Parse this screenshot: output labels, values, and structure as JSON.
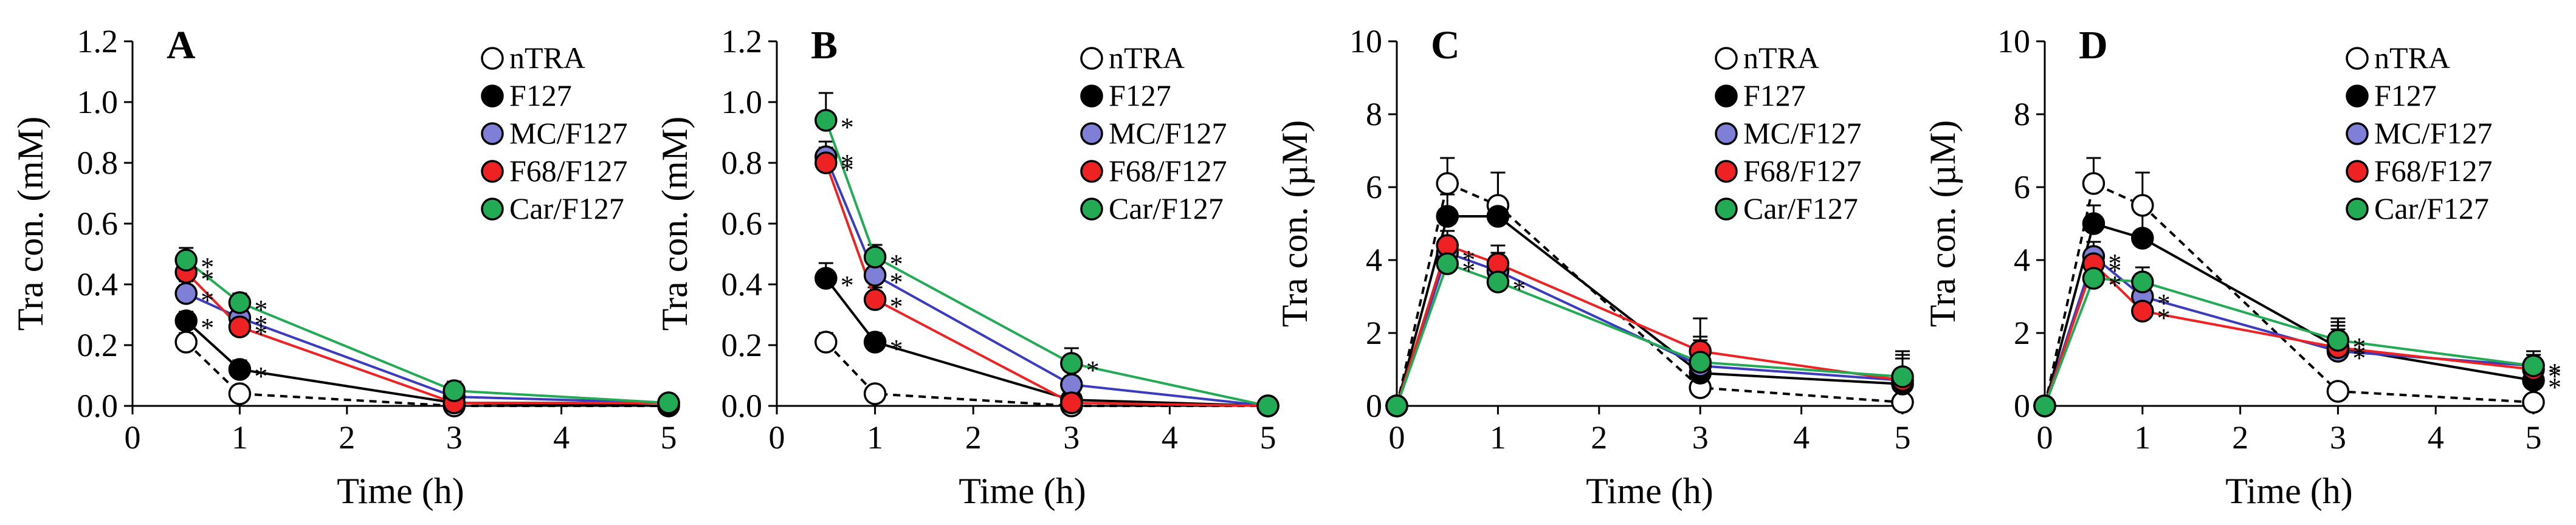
{
  "figure": {
    "series_styles": {
      "nTRA": {
        "fill": "#ffffff",
        "stroke": "#000000",
        "dash": true
      },
      "F127": {
        "fill": "#000000",
        "stroke": "#000000",
        "dash": false
      },
      "MC/F127": {
        "fill": "#7f7fd8",
        "stroke": "#3b3bbf",
        "dash": false
      },
      "F68/F127": {
        "fill": "#ee2222",
        "stroke": "#ee2222",
        "dash": false
      },
      "Car/F127": {
        "fill": "#22aa55",
        "stroke": "#22aa55",
        "dash": false
      }
    }
  },
  "chart_data": [
    {
      "type": "line",
      "panel": "A",
      "xlabel": "Time (h)",
      "ylabel": "Tra con. (mM)",
      "xlim": [
        0,
        5
      ],
      "ylim": [
        0,
        1.2
      ],
      "xticks": [
        "0",
        "1",
        "2",
        "3",
        "4",
        "5"
      ],
      "yticks": [
        "0.0",
        "0.2",
        "0.4",
        "0.6",
        "0.8",
        "1.0",
        "1.2"
      ],
      "x": [
        0.5,
        1,
        3,
        5
      ],
      "legend": [
        "nTRA",
        "F127",
        "MC/F127",
        "F68/F127",
        "Car/F127"
      ],
      "series": [
        {
          "name": "nTRA",
          "values": [
            0.21,
            0.04,
            0.0,
            0.0
          ],
          "err": [
            0.03,
            0.02,
            0.01,
            0.01
          ],
          "sig": [
            false,
            false,
            false,
            false
          ]
        },
        {
          "name": "F127",
          "values": [
            0.28,
            0.12,
            0.01,
            0.0
          ],
          "err": [
            0.03,
            0.03,
            0.01,
            0.01
          ],
          "sig": [
            true,
            true,
            false,
            false
          ]
        },
        {
          "name": "MC/F127",
          "values": [
            0.37,
            0.29,
            0.03,
            0.01
          ],
          "err": [
            0.04,
            0.03,
            0.02,
            0.01
          ],
          "sig": [
            true,
            true,
            false,
            false
          ]
        },
        {
          "name": "F68/F127",
          "values": [
            0.44,
            0.26,
            0.01,
            0.01
          ],
          "err": [
            0.04,
            0.03,
            0.01,
            0.01
          ],
          "sig": [
            true,
            true,
            false,
            false
          ]
        },
        {
          "name": "Car/F127",
          "values": [
            0.48,
            0.34,
            0.05,
            0.01
          ],
          "err": [
            0.04,
            0.03,
            0.03,
            0.01
          ],
          "sig": [
            true,
            true,
            false,
            false
          ]
        }
      ]
    },
    {
      "type": "line",
      "panel": "B",
      "xlabel": "Time (h)",
      "ylabel": "Tra con. (mM)",
      "xlim": [
        0,
        5
      ],
      "ylim": [
        0,
        1.2
      ],
      "xticks": [
        "0",
        "1",
        "2",
        "3",
        "4",
        "5"
      ],
      "yticks": [
        "0.0",
        "0.2",
        "0.4",
        "0.6",
        "0.8",
        "1.0",
        "1.2"
      ],
      "x": [
        0.5,
        1,
        3,
        5
      ],
      "legend": [
        "nTRA",
        "F127",
        "MC/F127",
        "F68/F127",
        "Car/F127"
      ],
      "series": [
        {
          "name": "nTRA",
          "values": [
            0.21,
            0.04,
            0.0,
            0.0
          ],
          "err": [
            0.03,
            0.02,
            0.01,
            0.01
          ],
          "sig": [
            false,
            false,
            false,
            false
          ]
        },
        {
          "name": "F127",
          "values": [
            0.42,
            0.21,
            0.02,
            0.0
          ],
          "err": [
            0.05,
            0.03,
            0.01,
            0.01
          ],
          "sig": [
            true,
            true,
            false,
            false
          ]
        },
        {
          "name": "MC/F127",
          "values": [
            0.82,
            0.43,
            0.07,
            0.0
          ],
          "err": [
            0.05,
            0.04,
            0.02,
            0.01
          ],
          "sig": [
            true,
            true,
            false,
            false
          ]
        },
        {
          "name": "F68/F127",
          "values": [
            0.8,
            0.35,
            0.01,
            0.0
          ],
          "err": [
            0.05,
            0.04,
            0.01,
            0.01
          ],
          "sig": [
            true,
            true,
            false,
            false
          ]
        },
        {
          "name": "Car/F127",
          "values": [
            0.94,
            0.49,
            0.14,
            0.0
          ],
          "err": [
            0.09,
            0.04,
            0.05,
            0.01
          ],
          "sig": [
            true,
            true,
            true,
            false
          ]
        }
      ]
    },
    {
      "type": "line",
      "panel": "C",
      "xlabel": "Time (h)",
      "ylabel": "Tra con. (µM)",
      "xlim": [
        0,
        5
      ],
      "ylim": [
        0,
        10
      ],
      "xticks": [
        "0",
        "1",
        "2",
        "3",
        "4",
        "5"
      ],
      "yticks": [
        "0",
        "2",
        "4",
        "6",
        "8",
        "10"
      ],
      "x": [
        0,
        0.5,
        1,
        3,
        5
      ],
      "legend": [
        "nTRA",
        "F127",
        "MC/F127",
        "F68/F127",
        "Car/F127"
      ],
      "series": [
        {
          "name": "nTRA",
          "values": [
            0,
            6.1,
            5.5,
            0.5,
            0.1
          ],
          "err": [
            0,
            0.7,
            0.9,
            0.3,
            0.1
          ],
          "sig": [
            false,
            false,
            false,
            false,
            false
          ]
        },
        {
          "name": "F127",
          "values": [
            0,
            5.2,
            5.2,
            0.9,
            0.6
          ],
          "err": [
            0,
            0.6,
            1.2,
            0.6,
            0.8
          ],
          "sig": [
            false,
            false,
            false,
            false,
            false
          ]
        },
        {
          "name": "MC/F127",
          "values": [
            0,
            4.2,
            3.7,
            1.1,
            0.7
          ],
          "err": [
            0,
            0.4,
            0.5,
            0.7,
            0.6
          ],
          "sig": [
            false,
            true,
            false,
            false,
            false
          ]
        },
        {
          "name": "F68/F127",
          "values": [
            0,
            4.4,
            3.9,
            1.5,
            0.7
          ],
          "err": [
            0,
            0.4,
            0.5,
            0.9,
            0.7
          ],
          "sig": [
            false,
            false,
            false,
            false,
            false
          ]
        },
        {
          "name": "Car/F127",
          "values": [
            0,
            3.9,
            3.4,
            1.2,
            0.8
          ],
          "err": [
            0,
            0.3,
            0.4,
            0.7,
            0.7
          ],
          "sig": [
            false,
            true,
            true,
            false,
            false
          ]
        }
      ]
    },
    {
      "type": "line",
      "panel": "D",
      "xlabel": "Time (h)",
      "ylabel": "Tra con. (µM)",
      "xlim": [
        0,
        5
      ],
      "ylim": [
        0,
        10
      ],
      "xticks": [
        "0",
        "1",
        "2",
        "3",
        "4",
        "5"
      ],
      "yticks": [
        "0",
        "2",
        "4",
        "6",
        "8",
        "10"
      ],
      "x": [
        0,
        0.5,
        1,
        3,
        5
      ],
      "legend": [
        "nTRA",
        "F127",
        "MC/F127",
        "F68/F127",
        "Car/F127"
      ],
      "series": [
        {
          "name": "nTRA",
          "values": [
            0,
            6.1,
            5.5,
            0.4,
            0.1
          ],
          "err": [
            0,
            0.7,
            0.9,
            0.2,
            0.1
          ],
          "sig": [
            false,
            false,
            false,
            false,
            false
          ]
        },
        {
          "name": "F127",
          "values": [
            0,
            5.0,
            4.6,
            1.6,
            0.7
          ],
          "err": [
            0,
            0.5,
            0.8,
            0.7,
            0.5
          ],
          "sig": [
            false,
            false,
            false,
            true,
            true
          ]
        },
        {
          "name": "MC/F127",
          "values": [
            0,
            4.1,
            3.0,
            1.5,
            1.1
          ],
          "err": [
            0,
            0.4,
            0.4,
            0.6,
            0.4
          ],
          "sig": [
            false,
            true,
            true,
            true,
            true
          ]
        },
        {
          "name": "F68/F127",
          "values": [
            0,
            3.9,
            2.6,
            1.6,
            1.0
          ],
          "err": [
            0,
            0.4,
            0.3,
            0.6,
            0.4
          ],
          "sig": [
            false,
            true,
            true,
            true,
            true
          ]
        },
        {
          "name": "Car/F127",
          "values": [
            0,
            3.5,
            3.4,
            1.8,
            1.1
          ],
          "err": [
            0,
            0.4,
            0.4,
            0.6,
            0.4
          ],
          "sig": [
            false,
            true,
            false,
            true,
            false
          ]
        }
      ]
    }
  ]
}
